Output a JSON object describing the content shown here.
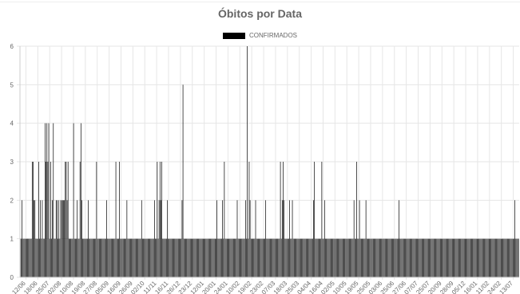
{
  "chart_data": {
    "type": "bar",
    "title": "Óbitos por Data",
    "legend_position": "top",
    "grid": true,
    "ylim": [
      0,
      6
    ],
    "y_ticks": [
      "0",
      "1",
      "2",
      "3",
      "4",
      "5",
      "6"
    ],
    "x_tick_labels": [
      "12/06",
      "18/06",
      "25/07",
      "02/08",
      "10/08",
      "19/08",
      "27/08",
      "05/09",
      "16/09",
      "26/09",
      "02/10",
      "11/11",
      "16/11",
      "26/12",
      "23/12",
      "12/01",
      "20/01",
      "24/01",
      "10/02",
      "19/02",
      "23/02",
      "07/03",
      "18/03",
      "25/03",
      "04/04",
      "16/04",
      "02/05",
      "10/05",
      "19/05",
      "25/05",
      "03/06",
      "25/06",
      "27/06",
      "07/07",
      "25/07",
      "20/09",
      "28/09",
      "05/12",
      "16/01",
      "11/02",
      "24/02",
      "13/07"
    ],
    "series": [
      {
        "name": "CONFIRMADOS",
        "color": "#000000",
        "values": [
          1,
          1,
          2,
          1,
          1,
          1,
          1,
          1,
          1,
          1,
          1,
          1,
          1,
          3,
          3,
          2,
          2,
          1,
          1,
          1,
          3,
          1,
          2,
          1,
          2,
          1,
          1,
          4,
          3,
          4,
          3,
          4,
          1,
          3,
          1,
          2,
          4,
          1,
          1,
          2,
          2,
          1,
          2,
          1,
          2,
          2,
          2,
          2,
          2,
          3,
          3,
          2,
          3,
          1,
          1,
          1,
          1,
          1,
          4,
          1,
          1,
          1,
          2,
          1,
          1,
          3,
          4,
          2,
          1,
          1,
          1,
          1,
          1,
          1,
          2,
          1,
          1,
          1,
          1,
          1,
          1,
          1,
          1,
          3,
          1,
          1,
          1,
          1,
          1,
          1,
          1,
          1,
          1,
          1,
          2,
          1,
          1,
          1,
          1,
          1,
          1,
          1,
          1,
          1,
          3,
          1,
          1,
          1,
          3,
          1,
          1,
          1,
          1,
          1,
          1,
          1,
          2,
          1,
          1,
          1,
          1,
          1,
          1,
          1,
          1,
          1,
          1,
          1,
          1,
          1,
          1,
          1,
          2,
          1,
          1,
          1,
          1,
          1,
          1,
          1,
          1,
          1,
          1,
          1,
          1,
          1,
          2,
          1,
          1,
          3,
          1,
          2,
          3,
          2,
          3,
          1,
          1,
          1,
          1,
          1,
          2,
          1,
          1,
          1,
          1,
          1,
          1,
          1,
          1,
          1,
          1,
          1,
          1,
          1,
          1,
          1,
          2,
          5,
          1,
          1,
          1,
          1,
          1,
          1,
          1,
          1,
          1,
          1,
          1,
          1,
          1,
          1,
          1,
          1,
          1,
          1,
          1,
          1,
          1,
          1,
          1,
          1,
          1,
          1,
          1,
          1,
          1,
          1,
          1,
          1,
          1,
          1,
          1,
          1,
          2,
          1,
          1,
          1,
          1,
          1,
          2,
          1,
          3,
          1,
          1,
          1,
          1,
          1,
          1,
          1,
          1,
          1,
          1,
          1,
          1,
          1,
          2,
          1,
          1,
          1,
          1,
          1,
          1,
          1,
          1,
          2,
          1,
          6,
          1,
          3,
          2,
          1,
          1,
          1,
          1,
          1,
          2,
          1,
          1,
          1,
          1,
          1,
          1,
          1,
          1,
          1,
          1,
          2,
          1,
          1,
          1,
          1,
          1,
          1,
          1,
          1,
          1,
          1,
          1,
          1,
          1,
          1,
          1,
          3,
          1,
          2,
          3,
          2,
          1,
          1,
          1,
          1,
          1,
          2,
          1,
          1,
          2,
          1,
          1,
          1,
          1,
          1,
          1,
          1,
          1,
          1,
          1,
          1,
          1,
          1,
          1,
          1,
          1,
          1,
          1,
          1,
          1,
          1,
          1,
          2,
          3,
          1,
          1,
          1,
          1,
          1,
          1,
          1,
          3,
          1,
          1,
          2,
          1,
          1,
          1,
          1,
          1,
          1,
          1,
          1,
          1,
          1,
          1,
          1,
          1,
          1,
          1,
          1,
          1,
          1,
          1,
          1,
          1,
          1,
          1,
          1,
          1,
          1,
          1,
          1,
          1,
          1,
          1,
          2,
          1,
          1,
          3,
          1,
          1,
          2,
          1,
          1,
          1,
          1,
          1,
          1,
          2,
          1,
          1,
          1,
          1,
          1,
          1,
          1,
          1,
          1,
          1,
          1,
          1,
          1,
          1,
          1,
          1,
          1,
          1,
          1,
          1,
          1,
          1,
          1,
          1,
          1,
          1,
          1,
          1,
          1,
          1,
          1,
          1,
          1,
          1,
          1,
          2,
          1,
          1,
          1,
          1,
          1,
          1,
          1,
          1,
          1,
          1,
          1,
          1,
          1,
          1,
          1,
          1,
          1,
          1,
          1,
          1,
          1,
          1,
          1,
          1,
          1,
          1,
          1,
          1,
          1,
          1,
          1,
          1,
          1,
          1,
          1,
          1,
          1,
          1,
          1,
          1,
          1,
          1,
          1,
          1,
          1,
          1,
          1,
          1,
          1,
          1,
          1,
          1,
          1,
          1,
          1,
          1,
          1,
          1,
          1,
          1,
          1,
          1,
          1,
          1,
          1,
          1,
          1,
          1,
          1,
          1,
          1,
          1,
          1,
          1,
          1,
          1,
          1,
          1,
          1,
          1,
          1,
          1,
          1,
          1,
          1,
          1,
          1,
          1,
          1,
          1,
          1,
          1,
          1,
          1,
          1,
          1,
          1,
          1,
          1,
          1,
          1,
          1,
          1,
          1,
          1,
          1,
          1,
          1,
          1,
          1,
          1,
          1,
          1,
          1,
          1,
          1,
          1,
          1,
          1,
          1,
          1,
          1,
          1,
          1,
          1,
          2,
          1,
          1,
          1,
          1
        ]
      }
    ]
  }
}
